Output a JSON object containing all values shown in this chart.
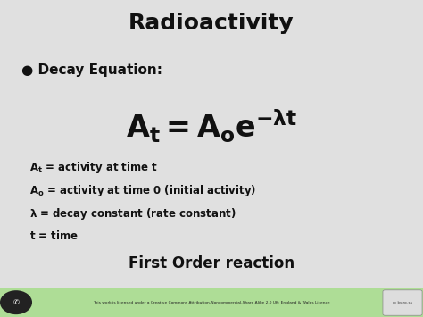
{
  "title": "Radioactivity",
  "title_fontsize": 18,
  "title_fontweight": "bold",
  "title_color": "#111111",
  "bullet_label": "● Decay Equation:",
  "bullet_fontsize": 11,
  "bullet_fontweight": "bold",
  "equation_fontsize": 24,
  "def_fontsize": 8.5,
  "footer_text": "First Order reaction",
  "footer_fontsize": 12,
  "footer_fontweight": "bold",
  "footer_color": "#111111",
  "bg_color": "#e0e0e0",
  "footer_bar_color": "#aedd96",
  "text_color": "#111111",
  "small_text": "This work is licensed under a Creative Commons Attribution-Noncommercial-Share Alike 2.0 UK: England & Wales Licence"
}
